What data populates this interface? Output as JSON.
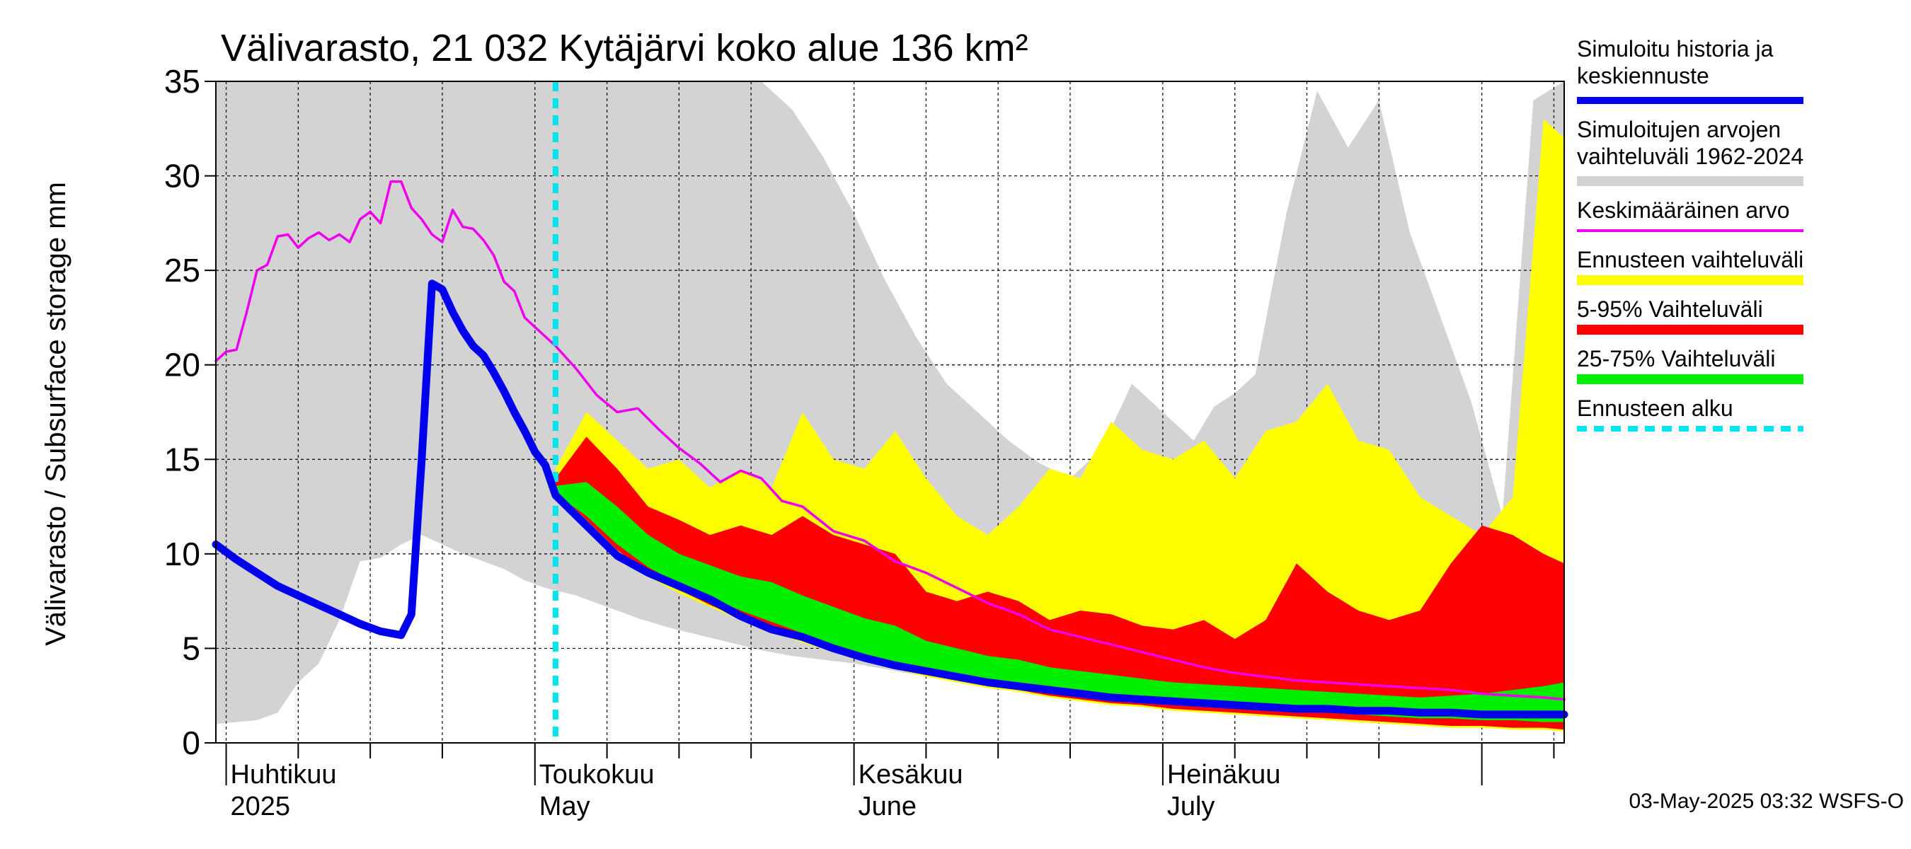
{
  "chart_data": {
    "type": "area",
    "title": "Välivarasto, 21 032 Kytäjärvi koko alue 136 km²",
    "ylabel": "Välivarasto / Subsurface storage  mm",
    "ylim": [
      0,
      35
    ],
    "xlim": [
      "2025-03-31",
      "2025-08-09"
    ],
    "yticks": [
      "0",
      "5",
      "10",
      "15",
      "20",
      "25",
      "30",
      "35"
    ],
    "grid": true,
    "legend_position": "right",
    "months": [
      {
        "date": "2025-04-01",
        "line1": "Huhtikuu",
        "line2": "2025"
      },
      {
        "date": "2025-05-01",
        "line1": "Toukokuu",
        "line2": "May"
      },
      {
        "date": "2025-06-01",
        "line1": "Kesäkuu",
        "line2": "June"
      },
      {
        "date": "2025-07-01",
        "line1": "Heinäkuu",
        "line2": "July"
      }
    ],
    "forecast_start": "2025-05-03",
    "legend": [
      {
        "line1": "Simuloitu historia ja",
        "line2": "keskiennuste",
        "color": "#0000ee",
        "kind": "line"
      },
      {
        "line1": "Simuloitujen arvojen",
        "line2": "vaihteluväli 1962-2024",
        "color": "#d3d3d3",
        "kind": "band"
      },
      {
        "line1": "Keskimääräinen arvo",
        "line2": "",
        "color": "#ee00ee",
        "kind": "line"
      },
      {
        "line1": "Ennusteen vaihteluväli",
        "line2": "",
        "color": "#ffff00",
        "kind": "band"
      },
      {
        "line1": "5-95% Vaihteluväli",
        "line2": "",
        "color": "#ff0000",
        "kind": "band"
      },
      {
        "line1": "25-75% Vaihteluväli",
        "line2": "",
        "color": "#00ee00",
        "kind": "band"
      },
      {
        "line1": "Ennusteen alku",
        "line2": "",
        "color": "#00e5ee",
        "kind": "dashed"
      }
    ],
    "series": {
      "history_range": {
        "x": [
          "2025-03-31",
          "2025-04-02",
          "2025-04-04",
          "2025-04-06",
          "2025-04-08",
          "2025-04-10",
          "2025-04-12",
          "2025-04-14",
          "2025-04-16",
          "2025-04-18",
          "2025-04-20",
          "2025-04-22",
          "2025-04-24",
          "2025-04-26",
          "2025-04-28",
          "2025-04-30",
          "2025-05-02",
          "2025-05-05",
          "2025-05-08",
          "2025-05-11",
          "2025-05-14",
          "2025-05-17",
          "2025-05-20",
          "2025-05-23",
          "2025-05-26",
          "2025-05-29",
          "2025-06-01",
          "2025-06-04",
          "2025-06-07",
          "2025-06-10",
          "2025-06-13",
          "2025-06-16",
          "2025-06-19",
          "2025-06-22",
          "2025-06-25",
          "2025-06-28",
          "2025-07-01",
          "2025-07-04",
          "2025-07-06",
          "2025-07-08",
          "2025-07-10",
          "2025-07-13",
          "2025-07-16",
          "2025-07-19",
          "2025-07-22",
          "2025-07-25",
          "2025-07-28",
          "2025-07-31",
          "2025-08-03",
          "2025-08-06",
          "2025-08-09"
        ],
        "low": [
          1.0,
          1.1,
          1.2,
          1.6,
          3.2,
          4.2,
          6.5,
          9.6,
          9.8,
          10.5,
          11.0,
          10.5,
          10.0,
          9.6,
          9.2,
          8.6,
          8.2,
          7.8,
          7.2,
          6.6,
          6.1,
          5.7,
          5.3,
          4.9,
          4.6,
          4.4,
          4.2,
          3.9,
          3.6,
          3.4,
          3.2,
          3.0,
          2.8,
          2.6,
          2.5,
          2.3,
          2.2,
          2.1,
          2.0,
          1.9,
          1.8,
          1.7,
          1.6,
          1.5,
          1.4,
          1.3,
          1.2,
          1.1,
          1.0,
          0.9,
          0.8
        ],
        "high": [
          35,
          35,
          35,
          35,
          35,
          35,
          35,
          35,
          35,
          35,
          35,
          35,
          35,
          35,
          35,
          35,
          35,
          35,
          35,
          35,
          35,
          35,
          35,
          35,
          33.5,
          31.0,
          28.0,
          24.5,
          21.5,
          19.0,
          17.5,
          16.0,
          14.8,
          14.0,
          15.5,
          19.0,
          17.5,
          16.0,
          17.8,
          18.5,
          19.5,
          28.0,
          34.5,
          31.5,
          34.0,
          27.0,
          22.5,
          18.0,
          12.0,
          34.0,
          35
        ]
      },
      "forecast_range": {
        "x": [
          "2025-05-03",
          "2025-05-06",
          "2025-05-09",
          "2025-05-12",
          "2025-05-15",
          "2025-05-18",
          "2025-05-21",
          "2025-05-24",
          "2025-05-27",
          "2025-05-30",
          "2025-06-02",
          "2025-06-05",
          "2025-06-08",
          "2025-06-11",
          "2025-06-14",
          "2025-06-17",
          "2025-06-20",
          "2025-06-23",
          "2025-06-26",
          "2025-06-29",
          "2025-07-02",
          "2025-07-05",
          "2025-07-08",
          "2025-07-11",
          "2025-07-14",
          "2025-07-17",
          "2025-07-20",
          "2025-07-23",
          "2025-07-26",
          "2025-07-29",
          "2025-08-01",
          "2025-08-04",
          "2025-08-07",
          "2025-08-09"
        ],
        "low": [
          13.3,
          11.6,
          10.0,
          8.8,
          7.9,
          7.2,
          6.5,
          5.9,
          5.3,
          4.8,
          4.3,
          3.9,
          3.5,
          3.2,
          2.9,
          2.7,
          2.4,
          2.2,
          2.0,
          1.9,
          1.7,
          1.6,
          1.5,
          1.4,
          1.3,
          1.2,
          1.1,
          1.0,
          0.9,
          0.8,
          0.8,
          0.7,
          0.7,
          0.6
        ],
        "high": [
          14.5,
          17.5,
          16.0,
          14.5,
          15.0,
          13.5,
          14.5,
          13.5,
          17.5,
          15.0,
          14.5,
          16.5,
          14.0,
          12.0,
          11.0,
          12.5,
          14.5,
          14.0,
          17.0,
          15.5,
          15.0,
          16.0,
          14.0,
          16.5,
          17.0,
          19.0,
          16.0,
          15.5,
          13.0,
          12.0,
          11.0,
          13.0,
          33.0,
          32.0
        ]
      },
      "p5_95": {
        "x": [
          "2025-05-03",
          "2025-05-06",
          "2025-05-09",
          "2025-05-12",
          "2025-05-15",
          "2025-05-18",
          "2025-05-21",
          "2025-05-24",
          "2025-05-27",
          "2025-05-30",
          "2025-06-02",
          "2025-06-05",
          "2025-06-08",
          "2025-06-11",
          "2025-06-14",
          "2025-06-17",
          "2025-06-20",
          "2025-06-23",
          "2025-06-26",
          "2025-06-29",
          "2025-07-02",
          "2025-07-05",
          "2025-07-08",
          "2025-07-11",
          "2025-07-14",
          "2025-07-17",
          "2025-07-20",
          "2025-07-23",
          "2025-07-26",
          "2025-07-29",
          "2025-08-01",
          "2025-08-04",
          "2025-08-07",
          "2025-08-09"
        ],
        "low": [
          13.4,
          11.8,
          10.2,
          9.0,
          8.1,
          7.3,
          6.6,
          6.0,
          5.4,
          4.9,
          4.4,
          4.0,
          3.6,
          3.3,
          3.0,
          2.8,
          2.5,
          2.3,
          2.1,
          2.0,
          1.8,
          1.7,
          1.6,
          1.5,
          1.4,
          1.3,
          1.2,
          1.1,
          1.0,
          0.9,
          0.9,
          0.8,
          0.8,
          0.7
        ],
        "high": [
          14.0,
          16.2,
          14.5,
          12.5,
          11.8,
          11.0,
          11.5,
          11.0,
          12.0,
          11.0,
          10.5,
          10.0,
          8.0,
          7.5,
          8.0,
          7.5,
          6.5,
          7.0,
          6.8,
          6.2,
          6.0,
          6.5,
          5.5,
          6.5,
          9.5,
          8.0,
          7.0,
          6.5,
          7.0,
          9.5,
          11.5,
          11.0,
          10.0,
          9.5
        ]
      },
      "p25_75": {
        "x": [
          "2025-05-03",
          "2025-05-06",
          "2025-05-09",
          "2025-05-12",
          "2025-05-15",
          "2025-05-18",
          "2025-05-21",
          "2025-05-24",
          "2025-05-27",
          "2025-05-30",
          "2025-06-02",
          "2025-06-05",
          "2025-06-08",
          "2025-06-11",
          "2025-06-14",
          "2025-06-17",
          "2025-06-20",
          "2025-06-23",
          "2025-06-26",
          "2025-06-29",
          "2025-07-02",
          "2025-07-05",
          "2025-07-08",
          "2025-07-11",
          "2025-07-14",
          "2025-07-17",
          "2025-07-20",
          "2025-07-23",
          "2025-07-26",
          "2025-07-29",
          "2025-08-01",
          "2025-08-04",
          "2025-08-07",
          "2025-08-09"
        ],
        "low": [
          13.2,
          12.0,
          10.5,
          9.3,
          8.4,
          7.7,
          7.0,
          6.4,
          5.8,
          5.2,
          4.7,
          4.3,
          3.9,
          3.6,
          3.3,
          3.1,
          2.8,
          2.6,
          2.4,
          2.3,
          2.1,
          2.0,
          1.9,
          1.8,
          1.7,
          1.6,
          1.5,
          1.4,
          1.3,
          1.3,
          1.2,
          1.2,
          1.1,
          1.1
        ],
        "high": [
          13.6,
          13.8,
          12.5,
          11.0,
          10.0,
          9.4,
          8.8,
          8.5,
          7.8,
          7.2,
          6.6,
          6.2,
          5.4,
          5.0,
          4.6,
          4.4,
          4.0,
          3.8,
          3.6,
          3.4,
          3.2,
          3.1,
          3.0,
          2.9,
          2.8,
          2.7,
          2.6,
          2.5,
          2.4,
          2.5,
          2.6,
          2.8,
          3.0,
          3.2
        ]
      },
      "mean": {
        "x": [
          "2025-03-31",
          "2025-04-01",
          "2025-04-02",
          "2025-04-03",
          "2025-04-04",
          "2025-04-05",
          "2025-04-06",
          "2025-04-07",
          "2025-04-08",
          "2025-04-09",
          "2025-04-10",
          "2025-04-11",
          "2025-04-12",
          "2025-04-13",
          "2025-04-14",
          "2025-04-15",
          "2025-04-16",
          "2025-04-17",
          "2025-04-18",
          "2025-04-19",
          "2025-04-20",
          "2025-04-21",
          "2025-04-22",
          "2025-04-23",
          "2025-04-24",
          "2025-04-25",
          "2025-04-26",
          "2025-04-27",
          "2025-04-28",
          "2025-04-29",
          "2025-04-30",
          "2025-05-01",
          "2025-05-03",
          "2025-05-05",
          "2025-05-07",
          "2025-05-09",
          "2025-05-11",
          "2025-05-13",
          "2025-05-15",
          "2025-05-17",
          "2025-05-19",
          "2025-05-21",
          "2025-05-23",
          "2025-05-25",
          "2025-05-27",
          "2025-05-30",
          "2025-06-02",
          "2025-06-05",
          "2025-06-08",
          "2025-06-11",
          "2025-06-14",
          "2025-06-17",
          "2025-06-20",
          "2025-06-23",
          "2025-06-26",
          "2025-06-29",
          "2025-07-02",
          "2025-07-05",
          "2025-07-08",
          "2025-07-11",
          "2025-07-14",
          "2025-07-17",
          "2025-07-20",
          "2025-07-23",
          "2025-07-26",
          "2025-07-29",
          "2025-08-01",
          "2025-08-04",
          "2025-08-07",
          "2025-08-09"
        ],
        "y": [
          20.2,
          20.7,
          20.8,
          22.8,
          25.0,
          25.3,
          26.8,
          26.9,
          26.2,
          26.7,
          27.0,
          26.6,
          26.9,
          26.5,
          27.7,
          28.1,
          27.5,
          29.7,
          29.7,
          28.3,
          27.7,
          26.9,
          26.5,
          28.2,
          27.3,
          27.2,
          26.6,
          25.8,
          24.4,
          23.9,
          22.5,
          22.0,
          21.0,
          19.8,
          18.4,
          17.5,
          17.7,
          16.6,
          15.6,
          14.8,
          13.8,
          14.4,
          14.0,
          12.8,
          12.5,
          11.2,
          10.7,
          9.6,
          9.0,
          8.2,
          7.4,
          6.8,
          6.0,
          5.6,
          5.2,
          4.8,
          4.4,
          4.0,
          3.7,
          3.5,
          3.3,
          3.2,
          3.1,
          3.0,
          2.9,
          2.8,
          2.6,
          2.5,
          2.4,
          2.3
        ]
      },
      "history_median": {
        "x": [
          "2025-03-31",
          "2025-04-02",
          "2025-04-04",
          "2025-04-06",
          "2025-04-08",
          "2025-04-10",
          "2025-04-12",
          "2025-04-14",
          "2025-04-16",
          "2025-04-18",
          "2025-04-19",
          "2025-04-20",
          "2025-04-21",
          "2025-04-22",
          "2025-04-23",
          "2025-04-24",
          "2025-04-25",
          "2025-04-26",
          "2025-04-27",
          "2025-04-28",
          "2025-04-29",
          "2025-04-30",
          "2025-05-01",
          "2025-05-02",
          "2025-05-03",
          "2025-05-06",
          "2025-05-09",
          "2025-05-12",
          "2025-05-15",
          "2025-05-18",
          "2025-05-21",
          "2025-05-24",
          "2025-05-27",
          "2025-05-30",
          "2025-06-02",
          "2025-06-05",
          "2025-06-08",
          "2025-06-11",
          "2025-06-14",
          "2025-06-17",
          "2025-06-20",
          "2025-06-23",
          "2025-06-26",
          "2025-06-29",
          "2025-07-02",
          "2025-07-05",
          "2025-07-08",
          "2025-07-11",
          "2025-07-14",
          "2025-07-17",
          "2025-07-20",
          "2025-07-23",
          "2025-07-26",
          "2025-07-29",
          "2025-08-01",
          "2025-08-04",
          "2025-08-07",
          "2025-08-09"
        ],
        "y": [
          10.5,
          9.7,
          9.0,
          8.3,
          7.8,
          7.3,
          6.8,
          6.3,
          5.9,
          5.7,
          6.8,
          15.0,
          24.3,
          24.0,
          22.8,
          21.8,
          21.0,
          20.5,
          19.6,
          18.6,
          17.5,
          16.5,
          15.4,
          14.7,
          13.1,
          11.5,
          9.9,
          9.0,
          8.3,
          7.6,
          6.7,
          6.0,
          5.6,
          5.0,
          4.5,
          4.1,
          3.8,
          3.5,
          3.2,
          3.0,
          2.8,
          2.6,
          2.4,
          2.3,
          2.2,
          2.1,
          2.0,
          1.9,
          1.8,
          1.8,
          1.7,
          1.7,
          1.6,
          1.6,
          1.5,
          1.5,
          1.5,
          1.5
        ]
      }
    }
  },
  "footer": "03-May-2025 03:32 WSFS-O"
}
